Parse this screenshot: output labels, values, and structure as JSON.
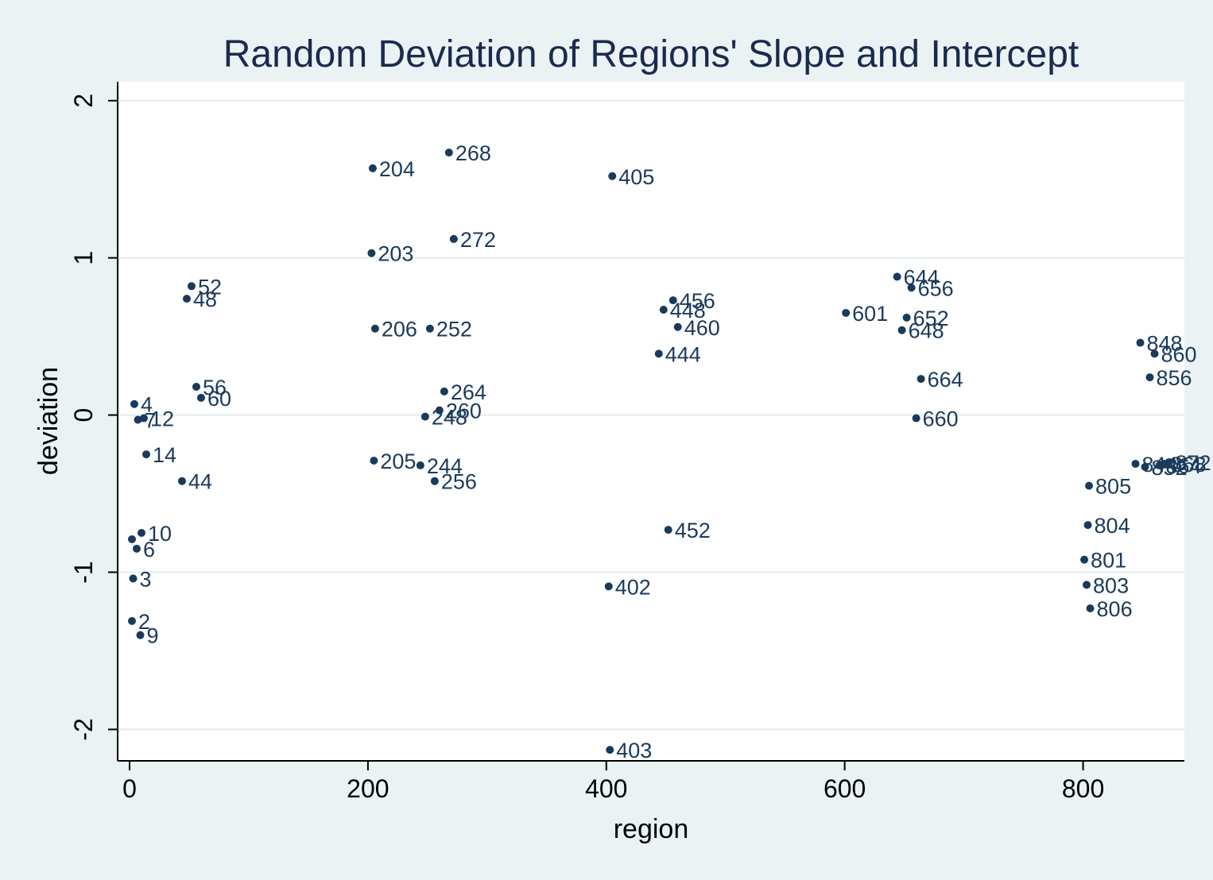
{
  "chart_data": {
    "type": "scatter",
    "title": "Random Deviation of Regions' Slope and Intercept",
    "xlabel": "region",
    "ylabel": "deviation",
    "xlim": [
      -10,
      885
    ],
    "ylim": [
      -2.2,
      2.12
    ],
    "xticks": [
      0,
      200,
      400,
      600,
      800
    ],
    "yticks": [
      -2,
      -1,
      0,
      1,
      2
    ],
    "xtick_labels": [
      "0",
      "200",
      "400",
      "600",
      "800"
    ],
    "ytick_labels": [
      "-2",
      "-1",
      "0",
      "1",
      "2"
    ],
    "grid": true,
    "marker_color": "#1a3a5c",
    "points": [
      {
        "x": 2,
        "y": -0.79,
        "label": ""
      },
      {
        "x": 2,
        "y": -1.31,
        "label": "2"
      },
      {
        "x": 3,
        "y": -1.04,
        "label": "3"
      },
      {
        "x": 4,
        "y": 0.07,
        "label": "4"
      },
      {
        "x": 6,
        "y": -0.85,
        "label": "6"
      },
      {
        "x": 7,
        "y": -0.03,
        "label": "7"
      },
      {
        "x": 9,
        "y": -1.4,
        "label": "9"
      },
      {
        "x": 10,
        "y": -0.75,
        "label": "10"
      },
      {
        "x": 12,
        "y": -0.02,
        "label": "12"
      },
      {
        "x": 14,
        "y": -0.25,
        "label": "14"
      },
      {
        "x": 44,
        "y": -0.42,
        "label": "44"
      },
      {
        "x": 48,
        "y": 0.74,
        "label": "48"
      },
      {
        "x": 52,
        "y": 0.82,
        "label": "52"
      },
      {
        "x": 56,
        "y": 0.18,
        "label": "56"
      },
      {
        "x": 60,
        "y": 0.11,
        "label": "60"
      },
      {
        "x": 203,
        "y": 1.03,
        "label": "203"
      },
      {
        "x": 204,
        "y": 1.57,
        "label": "204"
      },
      {
        "x": 205,
        "y": -0.29,
        "label": "205"
      },
      {
        "x": 206,
        "y": 0.55,
        "label": "206"
      },
      {
        "x": 244,
        "y": -0.32,
        "label": "244"
      },
      {
        "x": 248,
        "y": -0.01,
        "label": "248"
      },
      {
        "x": 252,
        "y": 0.55,
        "label": "252"
      },
      {
        "x": 256,
        "y": -0.42,
        "label": "256"
      },
      {
        "x": 260,
        "y": 0.03,
        "label": "260"
      },
      {
        "x": 264,
        "y": 0.15,
        "label": "264"
      },
      {
        "x": 268,
        "y": 1.67,
        "label": "268"
      },
      {
        "x": 272,
        "y": 1.12,
        "label": "272"
      },
      {
        "x": 402,
        "y": -1.09,
        "label": "402"
      },
      {
        "x": 403,
        "y": -2.13,
        "label": "403"
      },
      {
        "x": 405,
        "y": 1.52,
        "label": "405"
      },
      {
        "x": 444,
        "y": 0.39,
        "label": "444"
      },
      {
        "x": 448,
        "y": 0.67,
        "label": "448"
      },
      {
        "x": 452,
        "y": -0.73,
        "label": "452"
      },
      {
        "x": 456,
        "y": 0.73,
        "label": "456"
      },
      {
        "x": 460,
        "y": 0.56,
        "label": "460"
      },
      {
        "x": 601,
        "y": 0.65,
        "label": "601"
      },
      {
        "x": 644,
        "y": 0.88,
        "label": "644"
      },
      {
        "x": 648,
        "y": 0.54,
        "label": "648"
      },
      {
        "x": 652,
        "y": 0.62,
        "label": "652"
      },
      {
        "x": 656,
        "y": 0.81,
        "label": "656"
      },
      {
        "x": 660,
        "y": -0.02,
        "label": "660"
      },
      {
        "x": 664,
        "y": 0.23,
        "label": "664"
      },
      {
        "x": 801,
        "y": -0.92,
        "label": "801"
      },
      {
        "x": 803,
        "y": -1.08,
        "label": "803"
      },
      {
        "x": 804,
        "y": -0.7,
        "label": "804"
      },
      {
        "x": 805,
        "y": -0.45,
        "label": "805"
      },
      {
        "x": 806,
        "y": -1.23,
        "label": "806"
      },
      {
        "x": 844,
        "y": -0.31,
        "label": "844"
      },
      {
        "x": 848,
        "y": 0.46,
        "label": "848"
      },
      {
        "x": 852,
        "y": -0.33,
        "label": "852"
      },
      {
        "x": 856,
        "y": 0.24,
        "label": "856"
      },
      {
        "x": 860,
        "y": 0.39,
        "label": "860"
      },
      {
        "x": 864,
        "y": -0.32,
        "label": "864"
      },
      {
        "x": 868,
        "y": -0.31,
        "label": "868"
      },
      {
        "x": 872,
        "y": -0.3,
        "label": "872"
      }
    ]
  }
}
